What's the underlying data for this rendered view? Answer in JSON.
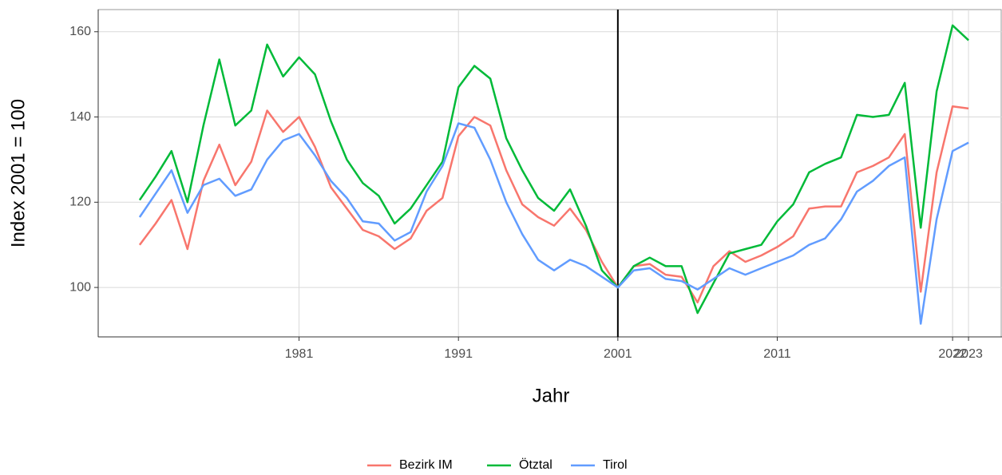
{
  "chart_data": {
    "type": "line",
    "xlabel": "Jahr",
    "ylabel": "Index 2001 = 100",
    "x": [
      1971,
      1972,
      1973,
      1974,
      1975,
      1976,
      1977,
      1978,
      1979,
      1980,
      1981,
      1982,
      1983,
      1984,
      1985,
      1986,
      1987,
      1988,
      1989,
      1990,
      1991,
      1992,
      1993,
      1994,
      1995,
      1996,
      1997,
      1998,
      1999,
      2000,
      2001,
      2002,
      2003,
      2004,
      2005,
      2006,
      2007,
      2008,
      2009,
      2010,
      2011,
      2012,
      2013,
      2014,
      2015,
      2016,
      2017,
      2018,
      2019,
      2020,
      2021,
      2022,
      2023
    ],
    "series": [
      {
        "name": "Bezirk IM",
        "color": "#F8766D",
        "values": [
          110,
          115,
          120.5,
          109,
          125,
          133.5,
          124,
          129.5,
          141.5,
          136.5,
          140,
          133,
          123.5,
          118.5,
          113.5,
          112,
          109,
          111.5,
          118,
          121,
          135.5,
          140,
          138,
          127.5,
          119.5,
          116.5,
          114.5,
          118.5,
          113.5,
          106,
          100,
          105,
          105.5,
          103,
          102.5,
          96.5,
          105,
          108.5,
          106,
          107.5,
          109.5,
          112,
          118.5,
          119,
          119,
          127,
          128.5,
          130.5,
          136,
          99,
          127,
          142.5,
          142
        ]
      },
      {
        "name": "Ötztal",
        "color": "#00BA38",
        "values": [
          120.5,
          126,
          132,
          120,
          138,
          153.5,
          138,
          141.5,
          157,
          149.5,
          154,
          150,
          139,
          130,
          124.5,
          121.5,
          115,
          118.5,
          124,
          129.5,
          147,
          152,
          149,
          135,
          127.5,
          121,
          118,
          123,
          114.5,
          104,
          100,
          105,
          107,
          105,
          105,
          94,
          101,
          108,
          109,
          110,
          115.5,
          119.5,
          127,
          129,
          130.5,
          140.5,
          140,
          140.5,
          148,
          114,
          146,
          161.5,
          158
        ]
      },
      {
        "name": "Tirol",
        "color": "#619CFF",
        "values": [
          116.5,
          122,
          127.5,
          117.5,
          124,
          125.5,
          121.5,
          123,
          130,
          134.5,
          136,
          131,
          125,
          121,
          115.5,
          115,
          111,
          113,
          122.5,
          128.5,
          138.5,
          137.5,
          130,
          120,
          112.5,
          106.5,
          104,
          106.5,
          105,
          102.5,
          100,
          104,
          104.5,
          102,
          101.5,
          99.5,
          102,
          104.5,
          103,
          104.5,
          106,
          107.5,
          110,
          111.5,
          116,
          122.5,
          125,
          128.5,
          130.5,
          91.5,
          116,
          132,
          134
        ]
      }
    ],
    "xlim": [
      1968.4,
      2025.1
    ],
    "xticks": [
      1981,
      1991,
      2001,
      2011,
      2022,
      2023
    ],
    "ylim": [
      88.4,
      165.2
    ],
    "yticks": [
      100,
      120,
      140,
      160
    ],
    "vline": 2001,
    "grid": true,
    "legend": "bottom"
  }
}
